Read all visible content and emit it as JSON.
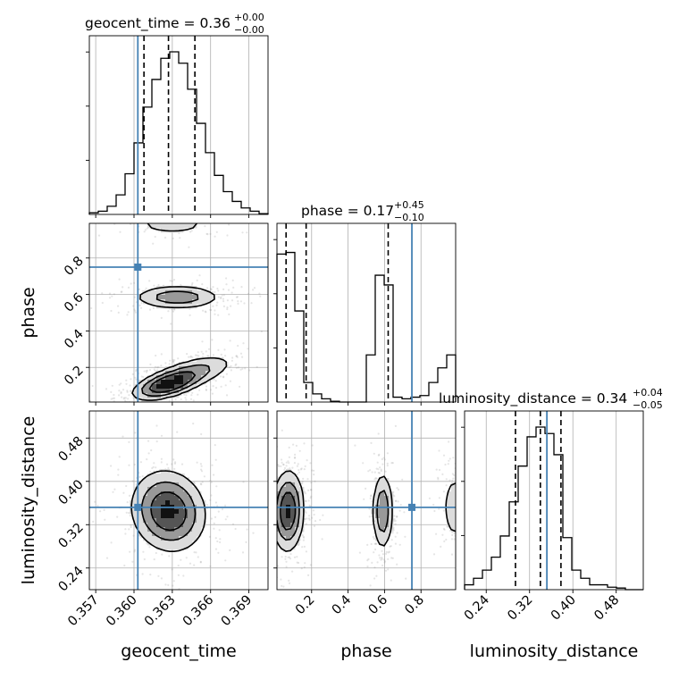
{
  "chart_data": {
    "type": "corner",
    "parameters": [
      "geocent_time",
      "phase",
      "luminosity_distance"
    ],
    "axis_labels": {
      "geocent_time": "geocent_time",
      "phase": "phase",
      "luminosity_distance": "luminosity_distance"
    },
    "titles": {
      "geocent_time": {
        "name": "geocent_time",
        "median": "0.36",
        "plus": "+0.00",
        "minus": "−0.00"
      },
      "phase": {
        "name": "phase",
        "median": "0.17",
        "plus": "+0.45",
        "minus": "−0.10"
      },
      "luminosity_distance": {
        "name": "luminosity_distance",
        "median": "0.34",
        "plus": "+0.04",
        "minus": "−0.05"
      }
    },
    "ranges": {
      "geocent_time": [
        0.3565,
        0.3705
      ],
      "phase": [
        0.01,
        0.99
      ],
      "luminosity_distance": [
        0.2,
        0.53
      ]
    },
    "ticks": {
      "geocent_time": {
        "values": [
          0.357,
          0.36,
          0.363,
          0.366,
          0.369
        ],
        "labels": [
          "0.357",
          "0.360",
          "0.363",
          "0.366",
          "0.369"
        ]
      },
      "phase": {
        "values": [
          0.2,
          0.4,
          0.6,
          0.8
        ],
        "labels": [
          "0.2",
          "0.4",
          "0.6",
          "0.8"
        ]
      },
      "luminosity_distance": {
        "values": [
          0.24,
          0.32,
          0.4,
          0.48
        ],
        "labels": [
          "0.24",
          "0.32",
          "0.40",
          "0.48"
        ]
      }
    },
    "injected_values": {
      "geocent_time": 0.3603,
      "phase": 0.75,
      "luminosity_distance": 0.352
    },
    "quantiles": {
      "geocent_time": [
        0.36078,
        0.3627,
        0.36477
      ],
      "phase": [
        0.06,
        0.17,
        0.62
      ],
      "luminosity_distance": [
        0.294,
        0.34,
        0.378
      ]
    },
    "histograms": {
      "geocent_time": {
        "edges": [
          0.3565,
          0.3572,
          0.3579,
          0.3586,
          0.3593,
          0.36,
          0.3607,
          0.3614,
          0.3621,
          0.3628,
          0.3635,
          0.3642,
          0.3649,
          0.3656,
          0.3663,
          0.367,
          0.3677,
          0.3684,
          0.3691,
          0.3698,
          0.3705
        ],
        "counts": [
          0.01,
          0.02,
          0.05,
          0.12,
          0.25,
          0.44,
          0.66,
          0.83,
          0.96,
          1.0,
          0.93,
          0.77,
          0.56,
          0.38,
          0.24,
          0.14,
          0.08,
          0.04,
          0.02,
          0.005
        ]
      },
      "phase": {
        "edges": [
          0.01,
          0.059,
          0.108,
          0.157,
          0.206,
          0.255,
          0.304,
          0.353,
          0.402,
          0.451,
          0.5,
          0.549,
          0.598,
          0.647,
          0.696,
          0.745,
          0.794,
          0.843,
          0.892,
          0.941,
          0.99
        ],
        "counts": [
          0.91,
          0.92,
          0.56,
          0.12,
          0.05,
          0.02,
          0.005,
          0.0,
          0.0,
          0.0,
          0.29,
          0.78,
          0.72,
          0.03,
          0.02,
          0.03,
          0.04,
          0.12,
          0.21,
          0.29
        ]
      },
      "luminosity_distance": {
        "edges": [
          0.2,
          0.2165,
          0.233,
          0.2495,
          0.266,
          0.2825,
          0.299,
          0.3155,
          0.332,
          0.3485,
          0.365,
          0.3815,
          0.398,
          0.4145,
          0.431,
          0.4475,
          0.464,
          0.4805,
          0.497,
          0.5135,
          0.53
        ],
        "counts": [
          0.03,
          0.07,
          0.12,
          0.2,
          0.33,
          0.54,
          0.76,
          0.94,
          1.0,
          0.96,
          0.83,
          0.32,
          0.12,
          0.07,
          0.03,
          0.03,
          0.015,
          0.01,
          0.0,
          0.0
        ]
      }
    },
    "contour_modes": {
      "phase_vs_geocent_time": [
        {
          "cx": 0.3626,
          "cy": 0.105,
          "sx": 0.0013,
          "sy": 0.04,
          "rho": 0.55,
          "w": 1.0
        },
        {
          "cx": 0.3645,
          "cy": 0.17,
          "sx": 0.0017,
          "sy": 0.05,
          "rho": 0.6,
          "w": 0.45
        },
        {
          "cx": 0.3634,
          "cy": 0.585,
          "sx": 0.0017,
          "sy": 0.032,
          "rho": 0.0,
          "w": 0.55
        },
        {
          "cx": 0.363,
          "cy": 0.985,
          "sx": 0.0016,
          "sy": 0.03,
          "rho": 0.0,
          "w": 0.25
        }
      ],
      "luminosity_distance_vs_geocent_time": [
        {
          "cx": 0.3627,
          "cy": 0.345,
          "sx": 0.0014,
          "sy": 0.036,
          "rho": -0.1,
          "w": 1.0
        }
      ],
      "luminosity_distance_vs_phase": [
        {
          "cx": 0.07,
          "cy": 0.345,
          "sx": 0.042,
          "sy": 0.036,
          "rho": 0.05,
          "w": 1.0
        },
        {
          "cx": 0.59,
          "cy": 0.345,
          "sx": 0.028,
          "sy": 0.036,
          "rho": 0.0,
          "w": 0.6
        },
        {
          "cx": 0.985,
          "cy": 0.352,
          "sx": 0.035,
          "sy": 0.033,
          "rho": 0.0,
          "w": 0.3
        }
      ]
    },
    "contour_levels": [
      0.12,
      0.33,
      0.62
    ],
    "colors": {
      "truth": "#4682b4",
      "hist": "#000000",
      "grid": "#b0b0b0",
      "points": "#888888"
    }
  }
}
